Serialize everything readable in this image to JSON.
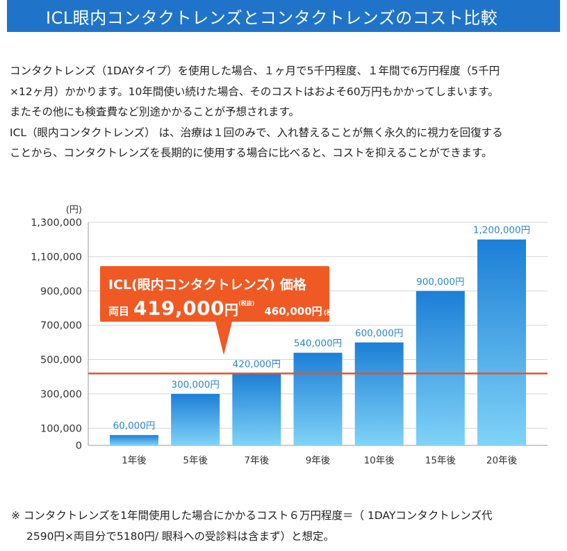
{
  "header": {
    "title": "ICL眼内コンタクトレンズとコンタクトレンズのコスト比較"
  },
  "intro": {
    "lines": [
      "コンタクトレンズ（1DAYタイプ）を使用した場合、１ヶ月で5千円程度、１年間で6万円程度（5千円",
      "×12ヶ月）かかります。10年間使い続けた場合、そのコストはおよそ60万円もかかってしまいます。",
      "またその他にも検査費など別途かかることが予想されます。",
      "ICL（眼内コンタクトレンズ） は、治療は１回のみで、入れ替えることが無く永久的に視力を回復する",
      "ことから、コンタクトレンズを長期的に使用する場合に比べると、コストを抑えることができます。"
    ]
  },
  "callout": {
    "title": "ICL(眼内コンタクトレンズ) 価格",
    "both_eyes": "両目",
    "price": "419,000",
    "yen": "円",
    "tax_excluded": "(税抜)",
    "price_incl": "460,000円",
    "tax_included": "(税込)"
  },
  "chart_data": {
    "type": "bar",
    "unit_label": "(円)",
    "categories": [
      "1年後",
      "5年後",
      "7年後",
      "9年後",
      "10年後",
      "15年後",
      "20年後"
    ],
    "values": [
      60000,
      300000,
      420000,
      540000,
      600000,
      900000,
      1200000
    ],
    "value_labels": [
      "60,000円",
      "300,000円",
      "420,000円",
      "540,000円",
      "600,000円",
      "900,000円",
      "1,200,000円"
    ],
    "yticks": [
      0,
      100000,
      300000,
      500000,
      700000,
      900000,
      1100000,
      1300000
    ],
    "ytick_labels": [
      "0",
      "100,000",
      "300,000",
      "500,000",
      "700,000",
      "900,000",
      "1,100,000",
      "1,300,000"
    ],
    "ylim": [
      0,
      1300000
    ],
    "reference_line": 419000,
    "grid": true,
    "colors": {
      "bar_top": "#1c7fd6",
      "bar_bottom": "#7fd3f7",
      "reference": "#e0532a",
      "label": "#2a86cf"
    }
  },
  "note": {
    "line1": "※ コンタクトレンズを1年間使用した場合にかかるコスト６万円程度＝（ 1DAYコンタクトレンズ代",
    "line2": "2590円×両目分で5180円/ 眼科への受診料は含まず）と想定。"
  }
}
